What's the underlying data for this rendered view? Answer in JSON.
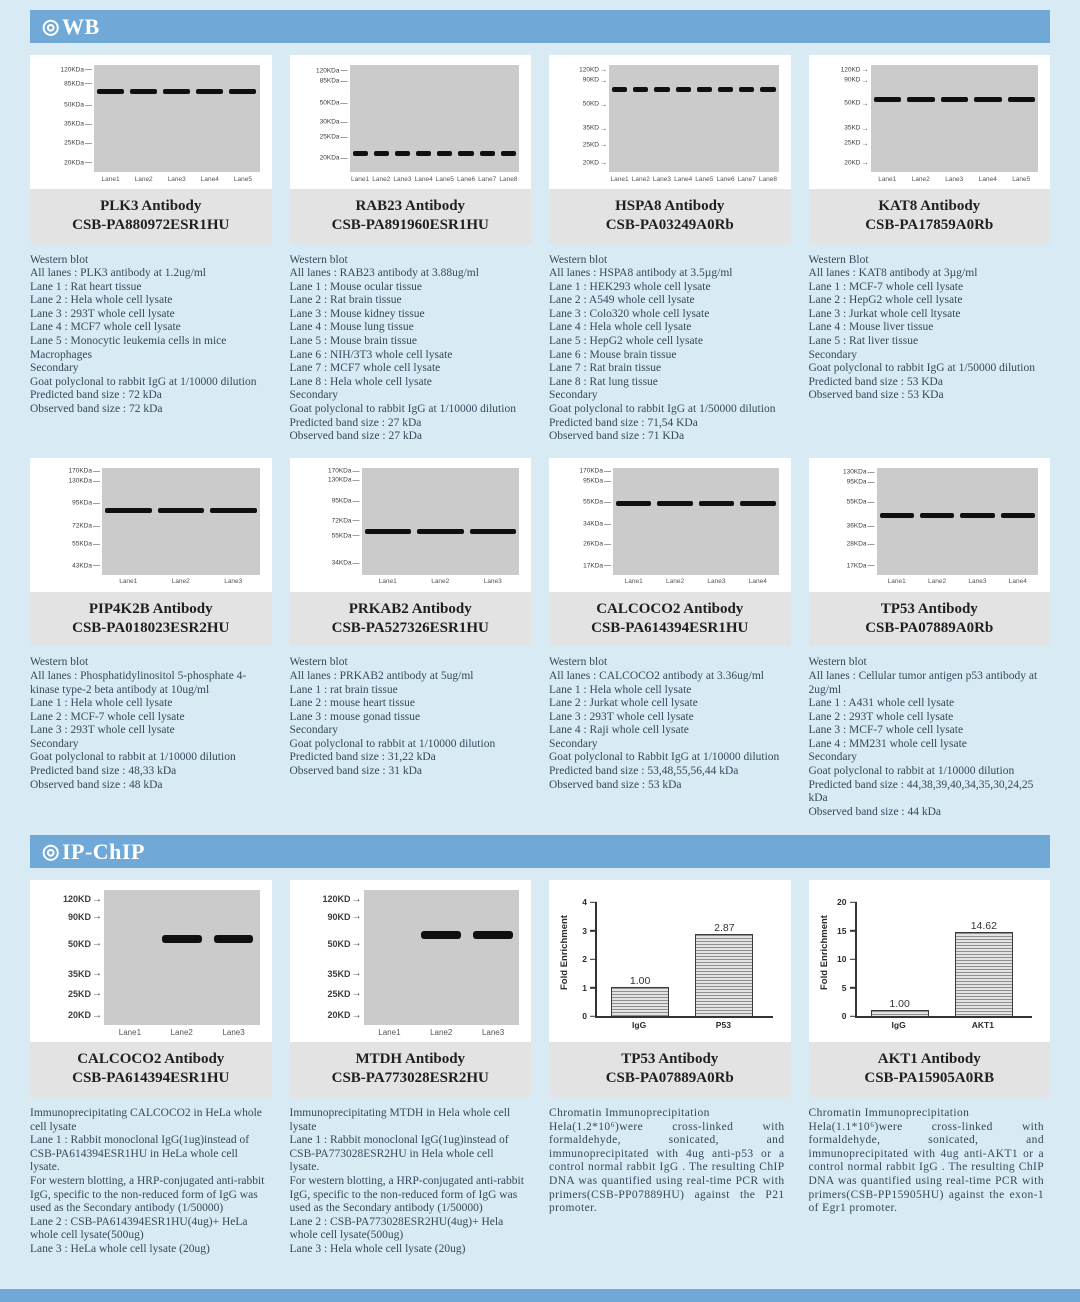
{
  "page": {
    "background": "#d8ebf4",
    "accent_blue": "#70a9d8",
    "card_strip_gray": "#e3e3e3",
    "gel_gray": "#cbcbcb"
  },
  "sections": [
    {
      "id": "wb",
      "bullet": "◎",
      "title": "WB",
      "cards": [
        {
          "title": "PLK3 Antibody",
          "catalog": "CSB-PA880972ESR1HU",
          "blot": {
            "marker_glyph": "—",
            "label_w": 56,
            "markers": [
              {
                "label": "120KDa",
                "pos": 5
              },
              {
                "label": "85KDa",
                "pos": 18
              },
              {
                "label": "50KDa",
                "pos": 38
              },
              {
                "label": "35KDa",
                "pos": 56
              },
              {
                "label": "25KDa",
                "pos": 74
              },
              {
                "label": "20KDa",
                "pos": 92
              }
            ],
            "band_pos": 22,
            "band_lanes": [
              1,
              1,
              1,
              1,
              1
            ],
            "lanes": [
              "Lane1",
              "Lane2",
              "Lane3",
              "Lane4",
              "Lane5"
            ]
          },
          "desc": [
            "Western blot",
            "All lanes : PLK3 antibody at 1.2ug/ml",
            "Lane 1 : Rat heart tissue",
            "Lane 2 : Hela whole cell lysate",
            "Lane 3 : 293T whole cell lysate",
            "Lane 4 : MCF7 whole cell lysate",
            "Lane 5 : Monocytic leukemia cells in mice Macrophages",
            "Secondary",
            "Goat polyclonal to rabbit IgG at 1/10000 dilution",
            "Predicted band size : 72 kDa",
            "Observed band size : 72 kDa"
          ]
        },
        {
          "title": "RAB23 Antibody",
          "catalog": "CSB-PA891960ESR1HU",
          "blot": {
            "marker_glyph": "—",
            "label_w": 52,
            "markers": [
              {
                "label": "120KDa",
                "pos": 6
              },
              {
                "label": "85KDa",
                "pos": 16
              },
              {
                "label": "50KDa",
                "pos": 36
              },
              {
                "label": "30KDa",
                "pos": 54
              },
              {
                "label": "25KDa",
                "pos": 68
              },
              {
                "label": "20KDa",
                "pos": 88
              }
            ],
            "band_pos": 80,
            "band_lanes": [
              1,
              1,
              1,
              1,
              1,
              1,
              1,
              1
            ],
            "lanes": [
              "Lane1",
              "Lane2",
              "Lane3",
              "Lane4",
              "Lane5",
              "Lane6",
              "Lane7",
              "Lane8"
            ]
          },
          "desc": [
            "Western blot",
            "All lanes : RAB23 antibody at 3.88ug/ml",
            "Lane 1 : Mouse ocular tissue",
            "Lane 2 : Rat brain tissue",
            "Lane 3 : Mouse kidney tissue",
            "Lane 4 : Mouse lung tissue",
            "Lane 5 : Mouse brain tissue",
            "Lane 6 : NIH/3T3 whole cell lysate",
            "Lane 7 : MCF7 whole cell lysate",
            "Lane 8 : Hela whole cell lysate",
            "Secondary",
            "Goat polyclonal to rabbit IgG at 1/10000 dilution",
            "Predicted band size : 27 kDa",
            "Observed band size : 27 kDa"
          ]
        },
        {
          "title": "HSPA8 Antibody",
          "catalog": "CSB-PA03249A0Rb",
          "blot": {
            "marker_glyph": "→",
            "label_w": 52,
            "markers": [
              {
                "label": "120KD",
                "pos": 5
              },
              {
                "label": "90KD",
                "pos": 15
              },
              {
                "label": "50KD",
                "pos": 37
              },
              {
                "label": "35KD",
                "pos": 60
              },
              {
                "label": "25KD",
                "pos": 75
              },
              {
                "label": "20KD",
                "pos": 92
              }
            ],
            "band_pos": 21,
            "band_lanes": [
              1,
              1,
              1,
              1,
              1,
              1,
              1,
              1
            ],
            "lanes": [
              "Lane1",
              "Lane2",
              "Lane3",
              "Lane4",
              "Lane5",
              "Lane6",
              "Lane7",
              "Lane8"
            ]
          },
          "desc": [
            "Western blot",
            "All lanes : HSPA8 antibody at 3.5µg/ml",
            "Lane 1 : HEK293 whole cell lysate",
            "Lane 2 : A549 whole cell lysate",
            "Lane 3 : Colo320 whole cell lysate",
            "Lane 4 : Hela whole cell lysate",
            "Lane 5 : HepG2 whole cell lysate",
            "Lane 6 : Mouse brain tissue",
            "Lane 7 : Rat brain tissue",
            "Lane 8 : Rat lung tissue",
            "Secondary",
            "Goat polyclonal to rabbit IgG at 1/50000 dilution",
            "Predicted band size : 71,54 KDa",
            "Observed band size : 71 KDa"
          ]
        },
        {
          "title": "KAT8 Antibody",
          "catalog": "CSB-PA17859A0Rb",
          "blot": {
            "marker_glyph": "→",
            "label_w": 54,
            "markers": [
              {
                "label": "120KD",
                "pos": 5
              },
              {
                "label": "90KD",
                "pos": 15
              },
              {
                "label": "50KD",
                "pos": 36
              },
              {
                "label": "35KD",
                "pos": 60
              },
              {
                "label": "25KD",
                "pos": 74
              },
              {
                "label": "20KD",
                "pos": 92
              }
            ],
            "band_pos": 30,
            "band_lanes": [
              1,
              1,
              1,
              1,
              1
            ],
            "lanes": [
              "Lane1",
              "Lane2",
              "Lane3",
              "Lane4",
              "Lane5"
            ]
          },
          "desc": [
            "Western Blot",
            "All lanes : KAT8 antibody at 3µg/ml",
            "Lane 1 : MCF-7 whole cell lysate",
            "Lane 2 : HepG2 whole cell lysate",
            "Lane 3 : Jurkat whole cell ltysate",
            "Lane 4 : Mouse liver tissue",
            "Lane 5 : Rat liver tissue",
            "Secondary",
            "Goat polyclonal to rabbit IgG at 1/50000 dilution",
            "Predicted band size : 53 KDa",
            "Observed band size : 53 KDa"
          ]
        },
        {
          "title": "PIP4K2B Antibody",
          "catalog": "CSB-PA018023ESR2HU",
          "blot": {
            "marker_glyph": "—",
            "label_w": 64,
            "markers": [
              {
                "label": "170KDa",
                "pos": 4
              },
              {
                "label": "130KDa",
                "pos": 13
              },
              {
                "label": "95KDa",
                "pos": 34
              },
              {
                "label": "72KDa",
                "pos": 55
              },
              {
                "label": "55KDa",
                "pos": 72
              },
              {
                "label": "43KDa",
                "pos": 92
              }
            ],
            "band_pos": 38,
            "band_lanes": [
              1,
              1,
              1
            ],
            "lanes": [
              "Lane1",
              "Lane2",
              "Lane3"
            ]
          },
          "desc": [
            "Western blot",
            "All lanes : Phosphatidylinositol 5-phosphate 4-kinase type-2 beta antibody at 10ug/ml",
            "Lane 1 : Hela whole cell lysate",
            "Lane 2 : MCF-7 whole cell lysate",
            "Lane 3 : 293T whole cell lysate",
            "Secondary",
            "Goat polyclonal to rabbit at 1/10000 dilution",
            "Predicted band size : 48,33 kDa",
            "Observed band size : 48 kDa"
          ]
        },
        {
          "title": "PRKAB2 Antibody",
          "catalog": "CSB-PA527326ESR1HU",
          "blot": {
            "marker_glyph": "—",
            "label_w": 64,
            "markers": [
              {
                "label": "170KDa",
                "pos": 4
              },
              {
                "label": "130KDa",
                "pos": 12
              },
              {
                "label": "95KDa",
                "pos": 32
              },
              {
                "label": "72KDa",
                "pos": 50
              },
              {
                "label": "55KDa",
                "pos": 64
              },
              {
                "label": "34KDa",
                "pos": 90
              }
            ],
            "band_pos": 57,
            "band_lanes": [
              1,
              1,
              1
            ],
            "lanes": [
              "Lane1",
              "Lane2",
              "Lane3"
            ]
          },
          "desc": [
            "Western blot",
            "All lanes : PRKAB2 antibody at 5ug/ml",
            "Lane 1 : rat brain tissue",
            "Lane 2 : mouse heart tissue",
            "Lane 3 : mouse gonad tissue",
            "Secondary",
            "Goat polyclonal to rabbit at 1/10000 dilution",
            "Predicted band size : 31,22 kDa",
            "Observed band size : 31 kDa"
          ]
        },
        {
          "title": "CALCOCO2 Antibody",
          "catalog": "CSB-PA614394ESR1HU",
          "blot": {
            "marker_glyph": "—",
            "label_w": 56,
            "markers": [
              {
                "label": "170KDa",
                "pos": 4
              },
              {
                "label": "95KDa",
                "pos": 13
              },
              {
                "label": "55KDa",
                "pos": 33
              },
              {
                "label": "34KDa",
                "pos": 53
              },
              {
                "label": "26KDa",
                "pos": 72
              },
              {
                "label": "17KDa",
                "pos": 92
              }
            ],
            "band_pos": 31,
            "band_lanes": [
              1,
              1,
              1,
              1
            ],
            "lanes": [
              "Lane1",
              "Lane2",
              "Lane3",
              "Lane4"
            ]
          },
          "desc": [
            "Western blot",
            "All lanes : CALCOCO2 antibody at 3.36ug/ml",
            "Lane 1 : Hela whole cell lysate",
            "Lane 2 : Jurkat whole cell lysate",
            "Lane 3 : 293T whole cell lysate",
            "Lane 4 : Raji whole cell lysate",
            "Secondary",
            "Goat polyclonal to Rabbit IgG at 1/10000 dilution",
            "Predicted band size : 53,48,55,56,44 kDa",
            "Observed band size : 53 kDa"
          ]
        },
        {
          "title": "TP53 Antibody",
          "catalog": "CSB-PA07889A0Rb",
          "blot": {
            "marker_glyph": "—",
            "label_w": 60,
            "markers": [
              {
                "label": "130KDa",
                "pos": 5
              },
              {
                "label": "95KDa",
                "pos": 14
              },
              {
                "label": "55KDa",
                "pos": 33
              },
              {
                "label": "36KDa",
                "pos": 55
              },
              {
                "label": "28KDa",
                "pos": 72
              },
              {
                "label": "17KDa",
                "pos": 92
              }
            ],
            "band_pos": 42,
            "band_lanes": [
              1,
              1,
              1,
              1
            ],
            "lanes": [
              "Lane1",
              "Lane2",
              "Lane3",
              "Lane4"
            ]
          },
          "desc": [
            "Western blot",
            "All lanes : Cellular tumor antigen p53 antibody at 2ug/ml",
            "Lane 1 : A431 whole cell lysate",
            "Lane 2 : 293T whole cell lysate",
            "Lane 3 : MCF-7 whole cell lysate",
            "Lane 4 : MM231 whole cell lysate",
            "Secondary",
            "Goat polyclonal to rabbit at 1/10000 dilution",
            "Predicted band size : 44,38,39,40,34,35,30,24,25 kDa",
            "Observed band size : 44 kDa"
          ]
        }
      ]
    },
    {
      "id": "ip-chip",
      "bullet": "◎",
      "title": "IP-ChIP",
      "cards": [
        {
          "title": "CALCOCO2 Antibody",
          "catalog": "CSB-PA614394ESR1HU",
          "blot": {
            "marker_glyph": "→",
            "label_w": 66,
            "markers": [
              {
                "label": "120KD",
                "pos": 7
              },
              {
                "label": "90KD",
                "pos": 20
              },
              {
                "label": "50KD",
                "pos": 40
              },
              {
                "label": "35KD",
                "pos": 62
              },
              {
                "label": "25KD",
                "pos": 77
              },
              {
                "label": "20KD",
                "pos": 93
              }
            ],
            "band_pos": 33,
            "band_lanes": [
              0,
              1,
              1
            ],
            "lanes": [
              "Lane1",
              "Lane2",
              "Lane3"
            ]
          },
          "desc": [
            "Immunoprecipitating CALCOCO2 in HeLa whole cell lysate",
            "Lane 1 : Rabbit monoclonal IgG(1ug)instead of CSB-PA614394ESR1HU in HeLa whole cell lysate.",
            "For western blotting, a HRP-conjugated anti-rabbit IgG, specific to the non-reduced form of IgG was used as the Secondary antibody (1/50000)",
            "Lane 2 : CSB-PA614394ESR1HU(4ug)+ HeLa whole cell lysate(500ug)",
            "Lane 3 : HeLa whole cell lysate (20ug)"
          ]
        },
        {
          "title": "MTDH Antibody",
          "catalog": "CSB-PA773028ESR2HU",
          "blot": {
            "marker_glyph": "→",
            "label_w": 66,
            "markers": [
              {
                "label": "120KD",
                "pos": 7
              },
              {
                "label": "90KD",
                "pos": 20
              },
              {
                "label": "50KD",
                "pos": 40
              },
              {
                "label": "35KD",
                "pos": 62
              },
              {
                "label": "25KD",
                "pos": 77
              },
              {
                "label": "20KD",
                "pos": 93
              }
            ],
            "band_pos": 30,
            "band_lanes": [
              0,
              1,
              1
            ],
            "lanes": [
              "Lane1",
              "Lane2",
              "Lane3"
            ]
          },
          "desc": [
            "Immunoprecipitating MTDH in Hela whole cell lysate",
            "Lane 1 : Rabbit monoclonal IgG(1ug)instead of CSB-PA773028ESR2HU in Hela whole cell lysate.",
            "For western blotting, a HRP-conjugated anti-rabbit IgG, specific to the non-reduced form of IgG was used as the Secondary antibody (1/50000)",
            "Lane 2 : CSB-PA773028ESR2HU(4ug)+ Hela whole cell lysate(500ug)",
            "Lane 3 : Hela whole cell lysate (20ug)"
          ]
        },
        {
          "title": "TP53 Antibody",
          "catalog": "CSB-PA07889A0Rb",
          "chart": {
            "type": "bar",
            "ylabel": "Fold Enrichment",
            "ymax": 4,
            "yticks": [
              0,
              1,
              2,
              3,
              4
            ],
            "categories": [
              "IgG",
              "P53"
            ],
            "values": [
              1.0,
              2.87
            ],
            "labels": [
              "1.00",
              "2.87"
            ]
          },
          "desc_style": "justify",
          "desc": [
            "Chromatin Immunoprecipitation",
            "Hela(1.2*10⁶)were cross-linked with formaldehyde, sonicated, and immunoprecipitated with 4ug anti-p53 or a control normal rabbit IgG . The resulting ChIP DNA was quantified using real-time PCR with primers(CSB-PP07889HU) against the P21 promoter."
          ]
        },
        {
          "title": "AKT1 Antibody",
          "catalog": "CSB-PA15905A0RB",
          "chart": {
            "type": "bar",
            "ylabel": "Fold Enrichment",
            "ymax": 20,
            "yticks": [
              0,
              5,
              10,
              15,
              20
            ],
            "categories": [
              "IgG",
              "AKT1"
            ],
            "values": [
              1.0,
              14.62
            ],
            "labels": [
              "1.00",
              "14.62"
            ]
          },
          "desc_style": "justify",
          "desc": [
            "Chromatin Immunoprecipitation",
            "Hela(1.1*10⁶)were cross-linked with formaldehyde, sonicated, and immunoprecipitated with 4ug anti-AKT1 or a control normal rabbit IgG . The resulting ChIP DNA was quantified using real-time PCR with primers(CSB-PP15905HU) against the exon-1 of Egr1 promoter."
          ]
        }
      ]
    }
  ],
  "chart_data": [
    {
      "type": "bar",
      "title": "TP53 Antibody CSB-PA07889A0Rb ChIP",
      "categories": [
        "IgG",
        "P53"
      ],
      "values": [
        1.0,
        2.87
      ],
      "xlabel": "",
      "ylabel": "Fold Enrichment",
      "ylim": [
        0,
        4
      ]
    },
    {
      "type": "bar",
      "title": "AKT1 Antibody CSB-PA15905A0RB ChIP",
      "categories": [
        "IgG",
        "AKT1"
      ],
      "values": [
        1.0,
        14.62
      ],
      "xlabel": "",
      "ylabel": "Fold Enrichment",
      "ylim": [
        0,
        20
      ]
    }
  ]
}
